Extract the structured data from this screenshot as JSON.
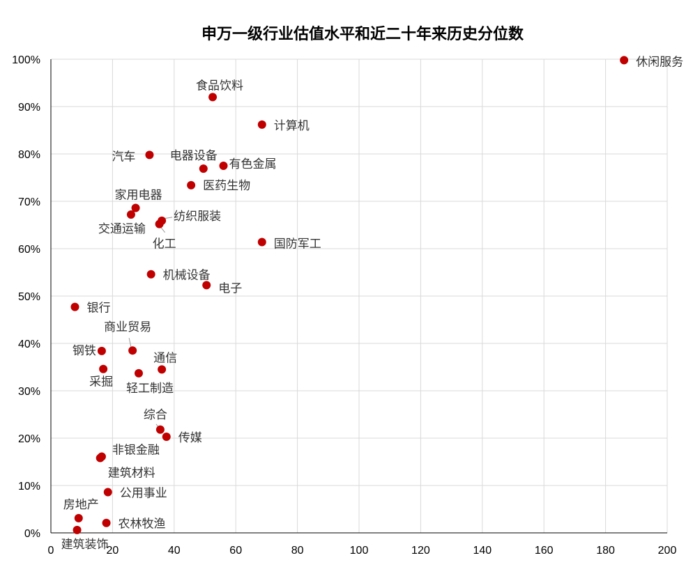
{
  "chart_data": {
    "type": "scatter",
    "title": "申万一级行业估值水平和近二十年来历史分位数",
    "xlabel": "",
    "ylabel": "",
    "xlim": [
      0,
      200
    ],
    "ylim": [
      0,
      100
    ],
    "x_ticks": [
      0,
      20,
      40,
      60,
      80,
      100,
      120,
      140,
      160,
      180,
      200
    ],
    "y_ticks": [
      "0%",
      "10%",
      "20%",
      "30%",
      "40%",
      "50%",
      "60%",
      "70%",
      "80%",
      "90%",
      "100%"
    ],
    "marker_color": "#c00000",
    "grid": true,
    "points": [
      {
        "name": "休闲服务",
        "x": 186,
        "y": 99.8
      },
      {
        "name": "食品饮料",
        "x": 52.5,
        "y": 92
      },
      {
        "name": "计算机",
        "x": 68.5,
        "y": 86.2
      },
      {
        "name": "汽车",
        "x": 32,
        "y": 79.8
      },
      {
        "name": "电器设备",
        "x": 49.5,
        "y": 76.9
      },
      {
        "name": "有色金属",
        "x": 56,
        "y": 77.5
      },
      {
        "name": "医药生物",
        "x": 45.5,
        "y": 73.4
      },
      {
        "name": "家用电器",
        "x": 27.5,
        "y": 68.6
      },
      {
        "name": "交通运输",
        "x": 26,
        "y": 67.2
      },
      {
        "name": "纺织服装",
        "x": 36,
        "y": 65.9
      },
      {
        "name": "化工",
        "x": 35.2,
        "y": 65.2
      },
      {
        "name": "国防军工",
        "x": 68.5,
        "y": 61.4
      },
      {
        "name": "机械设备",
        "x": 32.5,
        "y": 54.6
      },
      {
        "name": "电子",
        "x": 50.5,
        "y": 52.3
      },
      {
        "name": "银行",
        "x": 7.8,
        "y": 47.7
      },
      {
        "name": "商业贸易",
        "x": 26.5,
        "y": 38.5
      },
      {
        "name": "钢铁",
        "x": 16.5,
        "y": 38.4
      },
      {
        "name": "通信",
        "x": 36,
        "y": 34.5
      },
      {
        "name": "采掘",
        "x": 17,
        "y": 34.6
      },
      {
        "name": "轻工制造",
        "x": 28.5,
        "y": 33.7
      },
      {
        "name": "综合",
        "x": 35.5,
        "y": 21.8
      },
      {
        "name": "传媒",
        "x": 37.5,
        "y": 20.3
      },
      {
        "name": "非银金融",
        "x": 16.5,
        "y": 16.1
      },
      {
        "name": "建筑材料",
        "x": 16,
        "y": 15.8
      },
      {
        "name": "公用事业",
        "x": 18.5,
        "y": 8.6
      },
      {
        "name": "房地产",
        "x": 9,
        "y": 3.1
      },
      {
        "name": "农林牧渔",
        "x": 18,
        "y": 2.1
      },
      {
        "name": "建筑装饰",
        "x": 8.5,
        "y": 0.6
      }
    ]
  }
}
